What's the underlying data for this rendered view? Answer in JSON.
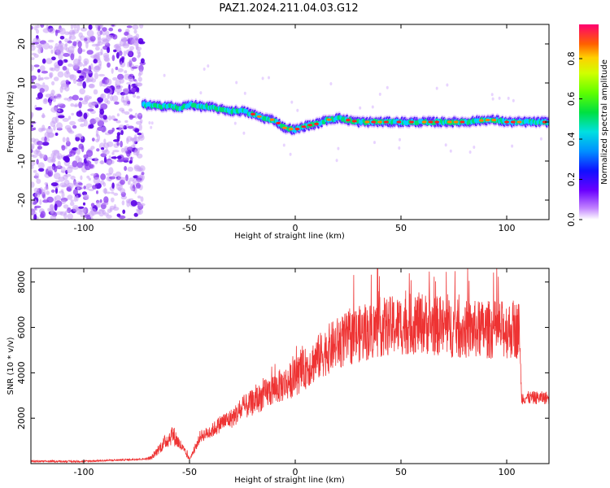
{
  "title": "PAZ1.2024.211.04.03.G12",
  "chart_data": [
    {
      "type": "heatmap",
      "xlabel": "Height of straight line (km)",
      "ylabel": "Frequency (Hz)",
      "xlim": [
        -125,
        120
      ],
      "ylim": [
        -25,
        25
      ],
      "xticks": [
        -100,
        -50,
        0,
        50,
        100
      ],
      "xtick_labels": [
        "-100",
        "-50",
        "0",
        "50",
        "100"
      ],
      "yticks": [
        -20,
        -10,
        0,
        10,
        20
      ],
      "ytick_labels": [
        "-20",
        "-10",
        "0",
        "10",
        "20"
      ],
      "colorbar": {
        "label": "Normalized spectral amplitude",
        "ticks": [
          0.0,
          0.2,
          0.4,
          0.6,
          0.8
        ],
        "tick_labels": [
          "0.0",
          "0.2",
          "0.4",
          "0.6",
          "0.8"
        ],
        "range": [
          0,
          0.97
        ],
        "colormap": "rainbow"
      },
      "noise_region_x": [
        -125,
        -72
      ],
      "ridge": {
        "x": [
          -72,
          -65,
          -60,
          -55,
          -50,
          -45,
          -40,
          -35,
          -30,
          -25,
          -20,
          -15,
          -10,
          -5,
          0,
          5,
          10,
          15,
          20,
          25,
          30,
          40,
          50,
          60,
          70,
          80,
          90,
          95,
          100,
          110,
          120
        ],
        "freq": [
          4.5,
          4,
          4.2,
          3.5,
          4.5,
          4,
          3.8,
          3.2,
          2.8,
          2.8,
          2,
          1,
          0.5,
          -1.5,
          -2,
          -1,
          -0.5,
          0.5,
          1,
          0.5,
          0,
          0,
          0,
          0,
          0,
          0,
          0.5,
          0.5,
          0,
          0,
          0
        ]
      }
    },
    {
      "type": "line",
      "xlabel": "Height of straight line (km)",
      "ylabel": "SNR (10 * v/v)",
      "xlim": [
        -125,
        120
      ],
      "ylim": [
        0,
        8600
      ],
      "xticks": [
        -100,
        -50,
        0,
        50,
        100
      ],
      "xtick_labels": [
        "-100",
        "-50",
        "0",
        "50",
        "100"
      ],
      "yticks": [
        2000,
        4000,
        6000,
        8000
      ],
      "ytick_labels": [
        "2000",
        "4000",
        "6000",
        "8000"
      ],
      "line_color": "#ee3333",
      "envelope": {
        "x": [
          -125,
          -100,
          -72,
          -68,
          -65,
          -62,
          -58,
          -55,
          -50,
          -47,
          -45,
          -40,
          -35,
          -30,
          -25,
          -20,
          -15,
          -10,
          -5,
          0,
          5,
          10,
          15,
          20,
          25,
          30,
          35,
          40,
          50,
          60,
          70,
          80,
          90,
          100,
          106,
          107,
          110,
          120
        ],
        "y": [
          100,
          100,
          200,
          250,
          600,
          900,
          1300,
          900,
          200,
          700,
          1200,
          1400,
          1800,
          2000,
          2400,
          2700,
          3000,
          3300,
          3500,
          3800,
          4200,
          4600,
          5000,
          5300,
          5500,
          5700,
          5800,
          6000,
          6100,
          6200,
          6000,
          5900,
          5900,
          5900,
          5900,
          2900,
          2900,
          2900
        ]
      }
    }
  ]
}
